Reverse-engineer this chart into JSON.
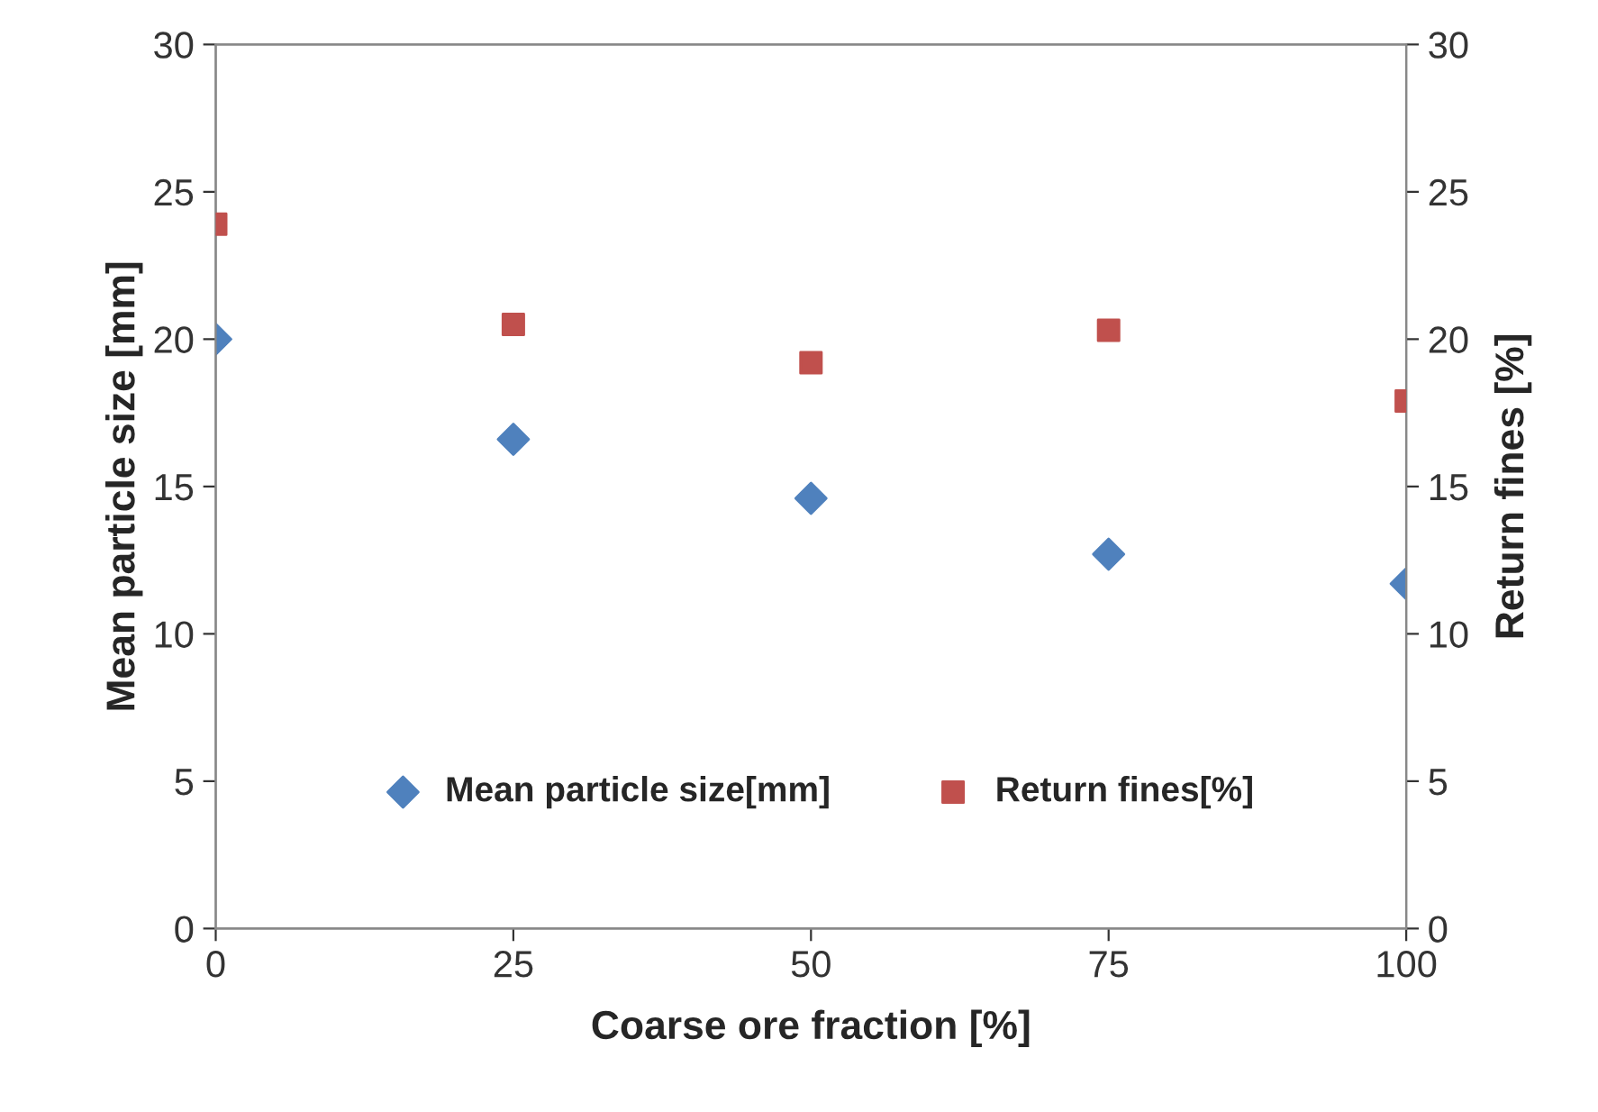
{
  "chart_data": {
    "type": "scatter",
    "xlabel": "Coarse ore fraction [%]",
    "ylabel": "Mean particle size [mm]",
    "y2label": "Return fines [%]",
    "x": [
      0,
      25,
      50,
      75,
      100
    ],
    "series": [
      {
        "name": "Mean particle size[mm]",
        "color": "#4f81bd",
        "marker": "diamond",
        "values": [
          20.0,
          16.6,
          14.6,
          12.7,
          11.7
        ]
      },
      {
        "name": "Return fines[%]",
        "color": "#c0504d",
        "marker": "square",
        "axis": "y2",
        "values": [
          23.9,
          20.5,
          19.2,
          20.3,
          17.9
        ]
      }
    ],
    "xlim": [
      0,
      100
    ],
    "xticks": [
      0,
      25,
      50,
      75,
      100
    ],
    "ylim": [
      0,
      30
    ],
    "yticks": [
      0,
      5,
      10,
      15,
      20,
      25,
      30
    ],
    "y2lim": [
      0,
      30
    ],
    "y2ticks": [
      0,
      5,
      10,
      15,
      20,
      25,
      30
    ],
    "grid": false,
    "legend": "bottom"
  }
}
